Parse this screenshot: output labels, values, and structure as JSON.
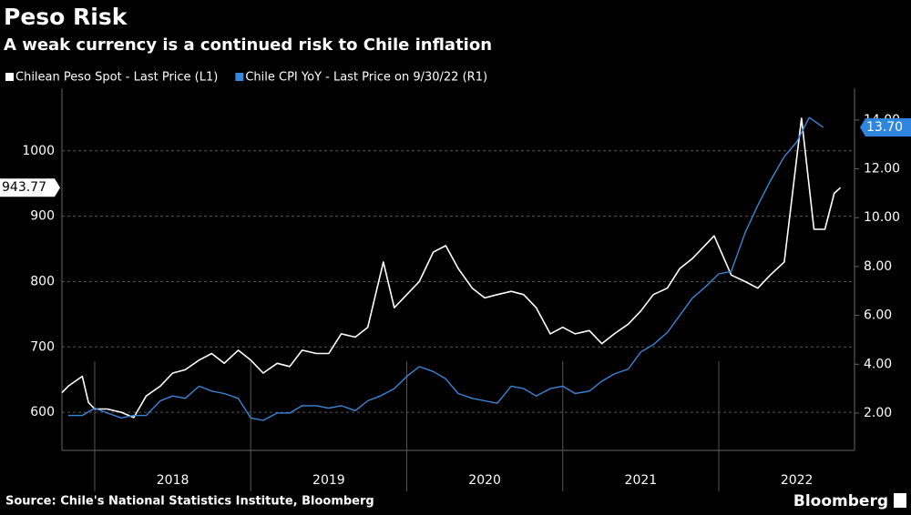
{
  "chart_data": {
    "type": "line",
    "title": "Peso Risk",
    "subtitle": "A weak currency is a continued risk to Chile inflation",
    "source": "Source: Chile's National Statistics Institute, Bloomberg",
    "brand": "Bloomberg",
    "xlim": [
      2017.79,
      2022.87
    ],
    "xticks": [
      2018,
      2019,
      2020,
      2021,
      2022
    ],
    "ylim": [
      541.7,
      1095.8
    ],
    "yticks": [
      600,
      700,
      800,
      900,
      1000
    ],
    "y2lim": [
      0.47,
      15.3
    ],
    "y2ticks": [
      {
        "value": 2,
        "label": "2.00"
      },
      {
        "value": 4,
        "label": "4.00"
      },
      {
        "value": 6,
        "label": "6.00"
      },
      {
        "value": 8,
        "label": "8.00"
      },
      {
        "value": 10,
        "label": "10.00"
      },
      {
        "value": 12,
        "label": "12.00"
      },
      {
        "value": 14,
        "label": "14.00"
      }
    ],
    "grid": true,
    "series": [
      {
        "name": "Chilean Peso Spot - Last Price (L1)",
        "color": "#ffffff",
        "axis": "y",
        "x": [
          2017.79,
          2017.83,
          2017.92,
          2017.96,
          2018.0,
          2018.08,
          2018.17,
          2018.25,
          2018.33,
          2018.42,
          2018.5,
          2018.58,
          2018.67,
          2018.75,
          2018.83,
          2018.92,
          2019.0,
          2019.08,
          2019.17,
          2019.25,
          2019.33,
          2019.42,
          2019.5,
          2019.58,
          2019.67,
          2019.75,
          2019.85,
          2019.92,
          2020.0,
          2020.08,
          2020.17,
          2020.25,
          2020.33,
          2020.42,
          2020.5,
          2020.58,
          2020.67,
          2020.75,
          2020.83,
          2020.92,
          2021.0,
          2021.08,
          2021.17,
          2021.25,
          2021.33,
          2021.42,
          2021.5,
          2021.58,
          2021.67,
          2021.75,
          2021.83,
          2021.97,
          2022.08,
          2022.17,
          2022.25,
          2022.33,
          2022.42,
          2022.53,
          2022.61,
          2022.68,
          2022.74,
          2022.78
        ],
        "values": [
          630,
          640,
          655,
          615,
          605,
          605,
          600,
          592,
          625,
          640,
          660,
          665,
          680,
          690,
          675,
          695,
          680,
          660,
          675,
          670,
          695,
          690,
          690,
          720,
          715,
          730,
          830,
          760,
          780,
          800,
          845,
          855,
          820,
          790,
          775,
          780,
          785,
          780,
          760,
          720,
          730,
          720,
          725,
          705,
          720,
          735,
          755,
          780,
          790,
          820,
          835,
          870,
          810,
          800,
          790,
          810,
          830,
          1050,
          880,
          880,
          935,
          943.77
        ]
      },
      {
        "name": "Chile CPI YoY - Last Price on 9/30/22 (R1)",
        "color": "#3a86d8",
        "axis": "y2",
        "x": [
          2017.83,
          2017.92,
          2018.0,
          2018.08,
          2018.17,
          2018.25,
          2018.33,
          2018.42,
          2018.5,
          2018.58,
          2018.67,
          2018.75,
          2018.83,
          2018.92,
          2019.0,
          2019.08,
          2019.17,
          2019.25,
          2019.33,
          2019.42,
          2019.5,
          2019.58,
          2019.67,
          2019.75,
          2019.83,
          2019.92,
          2020.0,
          2020.08,
          2020.17,
          2020.25,
          2020.33,
          2020.42,
          2020.5,
          2020.58,
          2020.67,
          2020.75,
          2020.83,
          2020.92,
          2021.0,
          2021.08,
          2021.17,
          2021.25,
          2021.33,
          2021.42,
          2021.5,
          2021.58,
          2021.67,
          2021.75,
          2021.83,
          2021.92,
          2022.0,
          2022.08,
          2022.17,
          2022.25,
          2022.33,
          2022.42,
          2022.5,
          2022.58,
          2022.67
        ],
        "values": [
          1.9,
          1.9,
          2.2,
          2.0,
          1.8,
          1.9,
          1.9,
          2.5,
          2.7,
          2.6,
          3.1,
          2.9,
          2.8,
          2.6,
          1.8,
          1.7,
          2.0,
          2.0,
          2.3,
          2.3,
          2.2,
          2.3,
          2.1,
          2.5,
          2.7,
          3.0,
          3.5,
          3.9,
          3.7,
          3.4,
          2.8,
          2.6,
          2.5,
          2.4,
          3.1,
          3.0,
          2.7,
          3.0,
          3.1,
          2.8,
          2.9,
          3.3,
          3.6,
          3.8,
          4.5,
          4.8,
          5.3,
          6.0,
          6.7,
          7.2,
          7.7,
          7.8,
          9.4,
          10.5,
          11.5,
          12.5,
          13.1,
          14.1,
          13.7
        ]
      }
    ],
    "last_price_labels": [
      {
        "value": 943.77,
        "label": "943.77"
      },
      {
        "value": 13.7,
        "label": "13.70"
      }
    ]
  }
}
